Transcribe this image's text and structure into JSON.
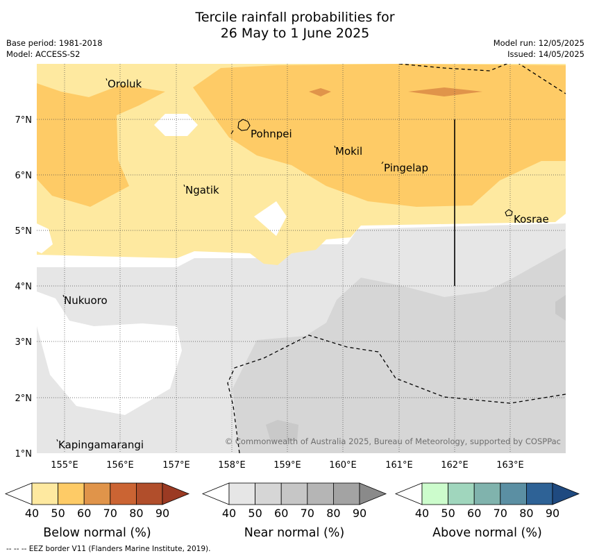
{
  "title": {
    "line1": "Tercile rainfall probabilities for",
    "line2": "26 May to 1 June 2025"
  },
  "meta": {
    "base_period": "Base period: 1981-2018",
    "model": "Model: ACCESS-S2",
    "model_run": "Model run: 12/05/2025",
    "issued": "Issued: 14/05/2025"
  },
  "axes": {
    "lon_labels": [
      "155°E",
      "156°E",
      "157°E",
      "158°E",
      "159°E",
      "160°E",
      "161°E",
      "162°E",
      "163°E"
    ],
    "lat_labels": [
      "7°N",
      "6°N",
      "5°N",
      "4°N",
      "3°N",
      "2°N",
      "1°N"
    ]
  },
  "places": [
    {
      "name": "Oroluk"
    },
    {
      "name": "Pohnpei"
    },
    {
      "name": "Mokil"
    },
    {
      "name": "Pingelap"
    },
    {
      "name": "Ngatik"
    },
    {
      "name": "Kosrae"
    },
    {
      "name": "Nukuoro"
    },
    {
      "name": "Kapingamarangi"
    }
  ],
  "copyright": "© Commonwealth of Australia 2025, Bureau of Meteorology, supported by COSPPac",
  "legends": [
    {
      "title": "Below normal (%)",
      "ticks": [
        "40",
        "50",
        "60",
        "70",
        "80",
        "90"
      ],
      "colors": [
        "#ffffff",
        "#fee9a0",
        "#fecb66",
        "#e0944a",
        "#cb6433",
        "#b14e2b",
        "#9b3a23"
      ]
    },
    {
      "title": "Near normal (%)",
      "ticks": [
        "40",
        "50",
        "60",
        "70",
        "80",
        "90"
      ],
      "colors": [
        "#ffffff",
        "#e6e6e6",
        "#d6d6d6",
        "#c6c6c6",
        "#b5b5b5",
        "#a3a3a3",
        "#8a8a8a"
      ]
    },
    {
      "title": "Above normal (%)",
      "ticks": [
        "40",
        "50",
        "60",
        "70",
        "80",
        "90"
      ],
      "colors": [
        "#ffffff",
        "#ccfccc",
        "#a0d6bd",
        "#80b3ad",
        "#5b8fa3",
        "#2e6296",
        "#1f4a80"
      ]
    }
  ],
  "footer": "--  --  -- EEZ border V11 (Flanders Marine Institute, 2019)."
}
